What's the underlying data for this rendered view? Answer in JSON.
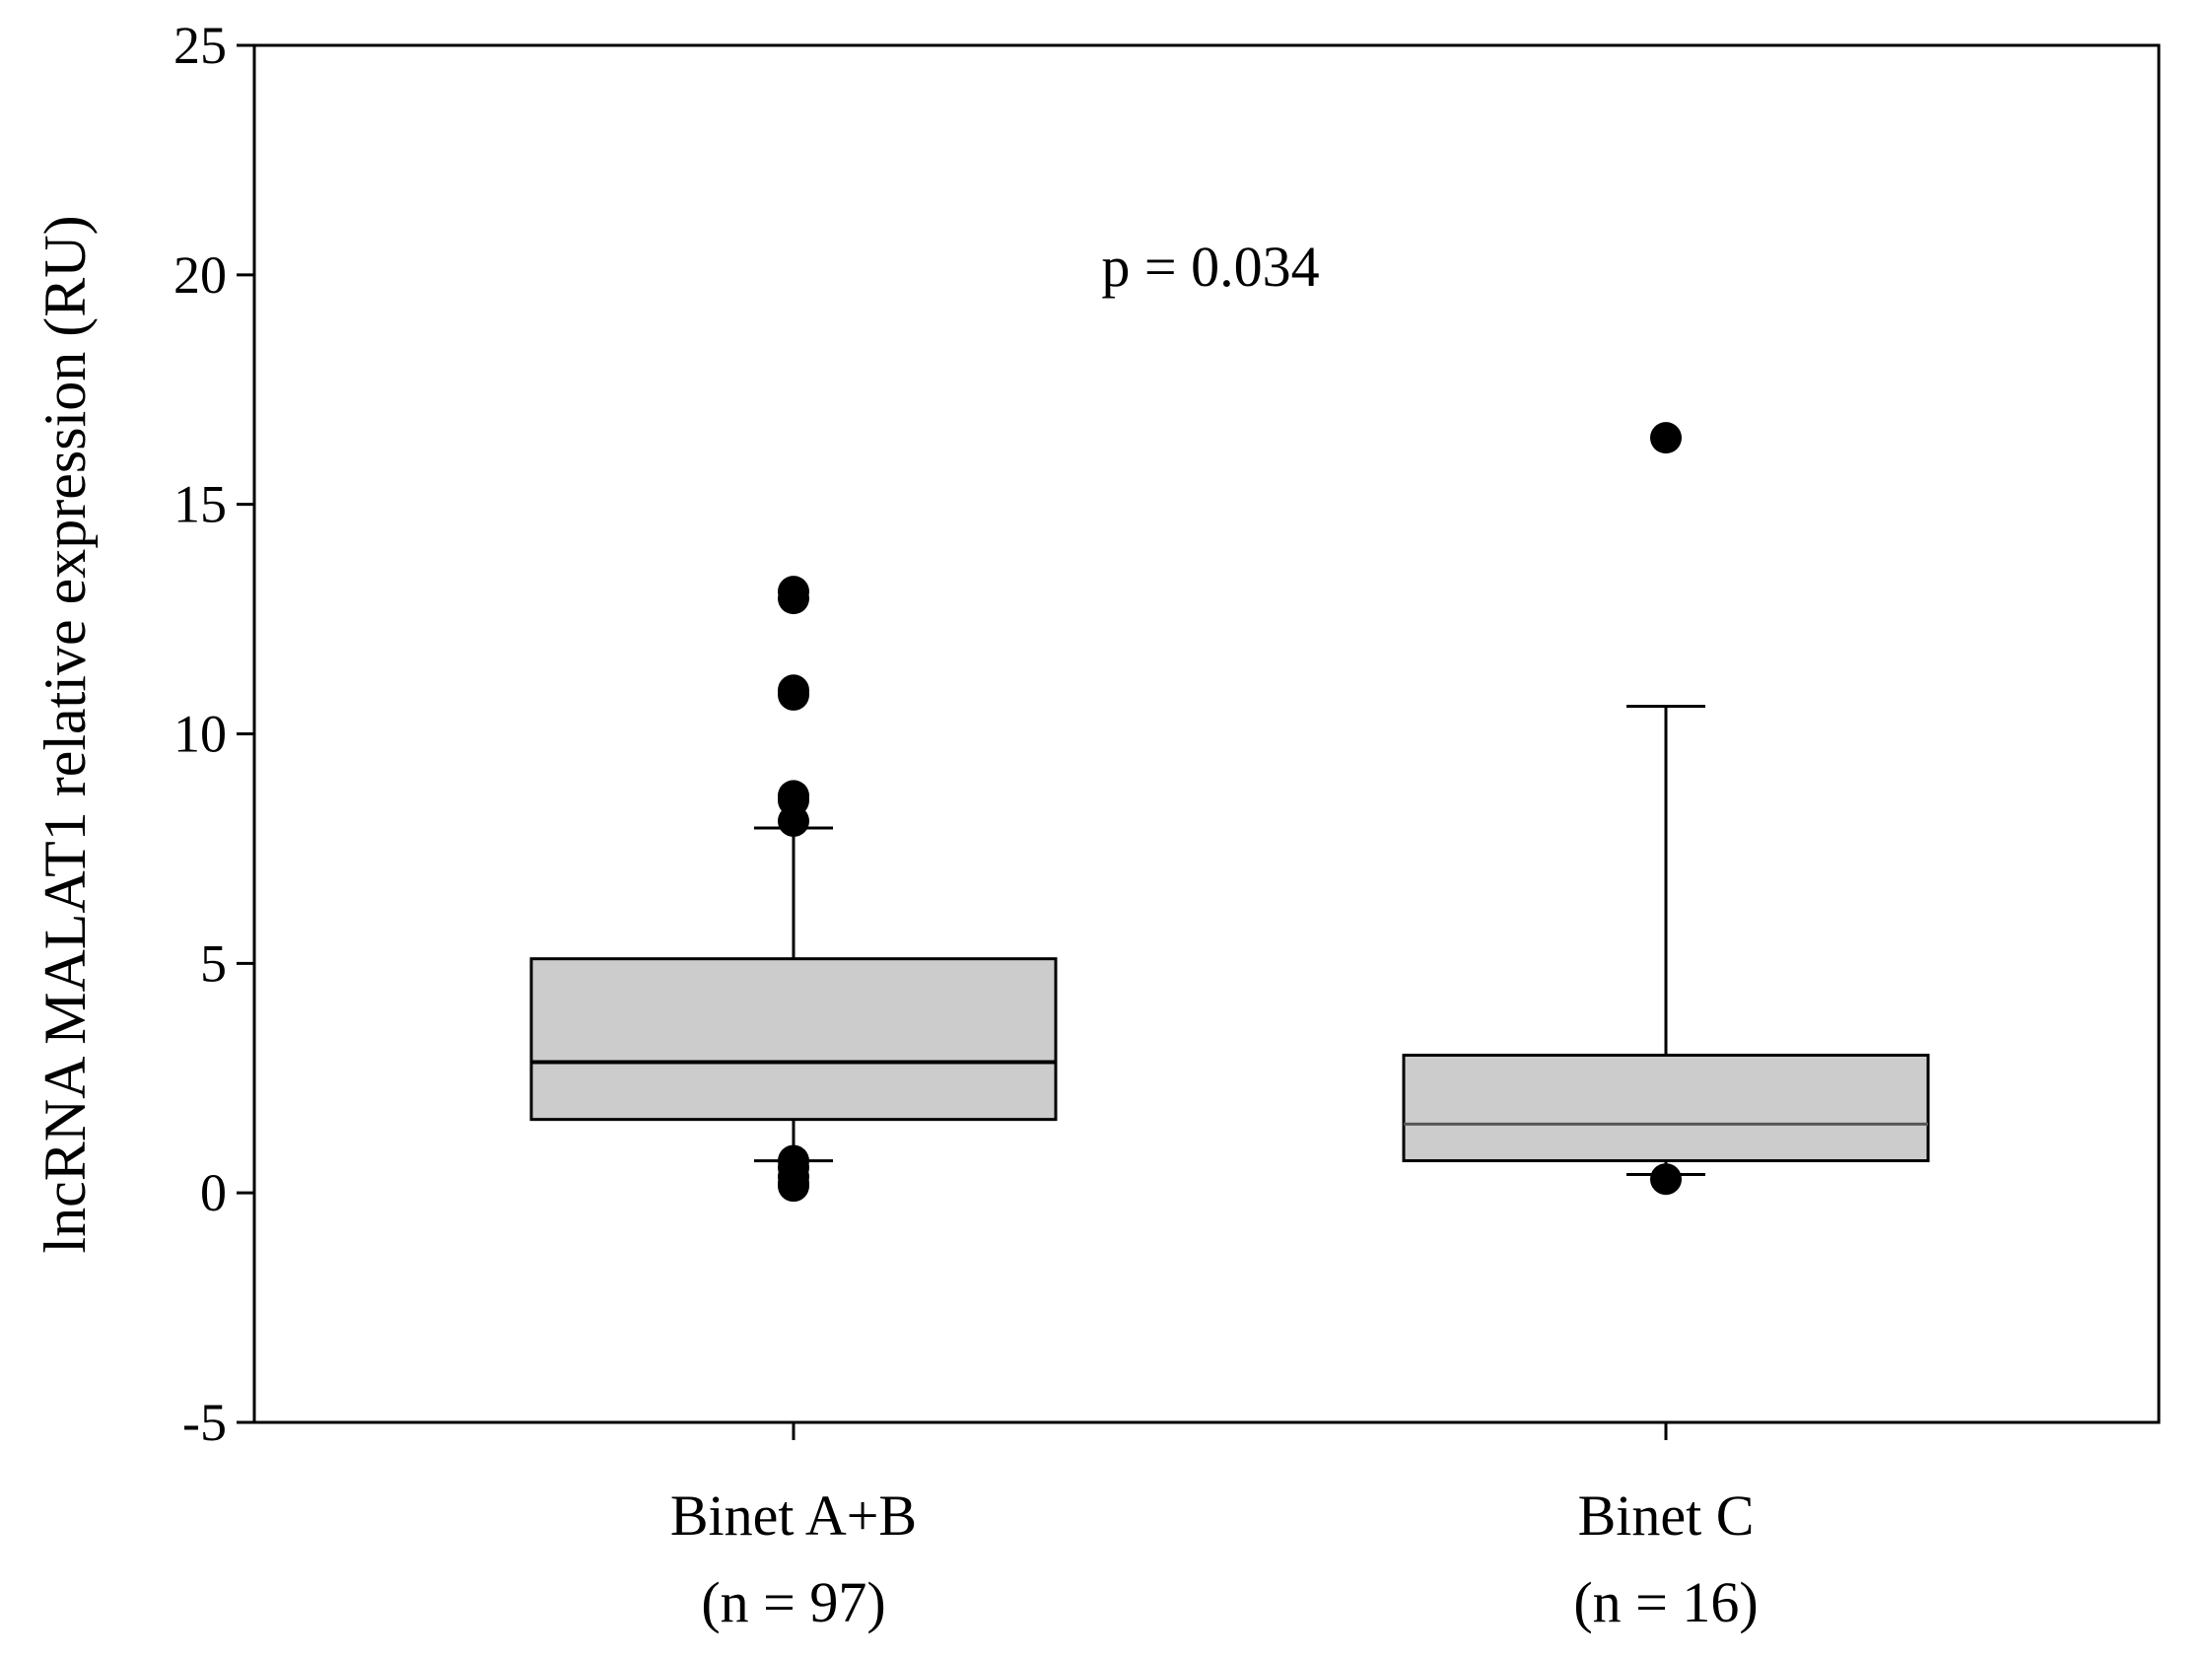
{
  "chart_data": {
    "type": "box",
    "ylabel": "lncRNA MALAT1 relative expression (RU)",
    "ylim": [
      -5,
      25
    ],
    "yticks": [
      -5,
      0,
      5,
      10,
      15,
      20,
      25
    ],
    "annotation": "p = 0.034",
    "grid": false,
    "legend": "none",
    "colors": {
      "box_fill": "#cccccc",
      "stroke": "#000000"
    },
    "groups": [
      {
        "label": "Binet A+B",
        "n_label": "(n = 97)",
        "whisker_low": 0.7,
        "q1": 1.6,
        "median": 2.85,
        "q3": 5.1,
        "whisker_high": 7.95,
        "outliers": [
          13.1,
          12.95,
          10.95,
          10.85,
          8.65,
          8.55,
          8.1,
          0.7,
          0.55,
          0.35,
          0.2,
          0.15
        ]
      },
      {
        "label": "Binet C",
        "n_label": "(n = 16)",
        "whisker_low": 0.4,
        "q1": 0.7,
        "median": 1.5,
        "q3": 3.0,
        "whisker_high": 10.6,
        "outliers": [
          16.45,
          0.3
        ]
      }
    ]
  }
}
